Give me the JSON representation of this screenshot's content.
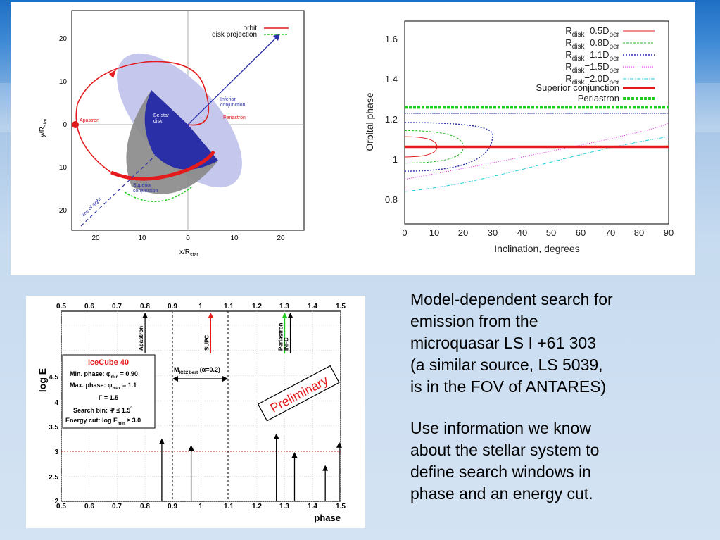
{
  "colors": {
    "orbit": "#e41a1c",
    "disk": "#2a2fa8",
    "shade": "#777",
    "periastron": "#22cc22",
    "accent": "#e41a1c"
  },
  "orbit_plot": {
    "xlabel": "x/R",
    "xlabel_sub": "star",
    "ylabel": "y/R",
    "ylabel_sub": "star",
    "xticks": [
      "20",
      "10",
      "0",
      "10",
      "20"
    ],
    "yticks": [
      "20",
      "10",
      "0",
      "10",
      "20"
    ],
    "legend": [
      {
        "label": "orbit"
      },
      {
        "label": "disk projection"
      }
    ],
    "labels": {
      "apastron": "Apastron",
      "periastron": "Periastron",
      "inferior1": "Inferior",
      "inferior2": "conjunction",
      "superior1": "Superior",
      "superior2": "conjunction",
      "disk1": "Be star",
      "disk2": "disk",
      "los": "line of sight"
    }
  },
  "phase_plot": {
    "ylabel": "Orbital phase",
    "xlabel": "Inclination, degrees",
    "xticks": [
      "0",
      "10",
      "20",
      "30",
      "40",
      "50",
      "60",
      "70",
      "80",
      "90"
    ],
    "yticks": [
      "0.8",
      "1",
      "1.2",
      "1.4",
      "1.6"
    ],
    "legend": [
      {
        "main": "R",
        "sub": "disk",
        "rest": "=0.5D",
        "sub2": "per"
      },
      {
        "main": "R",
        "sub": "disk",
        "rest": "=0.8D",
        "sub2": "per"
      },
      {
        "main": "R",
        "sub": "disk",
        "rest": "=1.1D",
        "sub2": "per"
      },
      {
        "main": "R",
        "sub": "disk",
        "rest": "=1.5D",
        "sub2": "per"
      },
      {
        "main": "R",
        "sub": "disk",
        "rest": "=2.0D",
        "sub2": "per"
      },
      {
        "main": "Superior conjunction"
      },
      {
        "main": "Periastron"
      }
    ]
  },
  "chart_data": [
    {
      "type": "line",
      "title": "",
      "xlabel": "Inclination, degrees",
      "ylabel": "Orbital phase",
      "xlim": [
        0,
        90
      ],
      "ylim": [
        0.7,
        1.7
      ],
      "series": [
        {
          "name": "Rdisk=0.5Dper",
          "x": [
            0,
            11,
            0
          ],
          "y": [
            1.13,
            1.08,
            1.03
          ]
        },
        {
          "name": "Rdisk=0.8Dper",
          "x": [
            0,
            20,
            0
          ],
          "y": [
            1.16,
            1.08,
            1.0
          ]
        },
        {
          "name": "Rdisk=1.1Dper",
          "x": [
            0,
            30,
            0
          ],
          "y": [
            1.2,
            1.14,
            0.96
          ]
        },
        {
          "name": "Rdisk=1.5Dper",
          "x": [
            0,
            38,
            90,
            90
          ],
          "y": [
            0.92,
            1.02,
            1.17,
            1.2
          ]
        },
        {
          "name": "Rdisk=2.0Dper",
          "x": [
            0,
            30,
            55,
            90
          ],
          "y": [
            0.86,
            0.9,
            1.05,
            1.13
          ]
        },
        {
          "name": "Superior conjunction",
          "x": [
            0,
            90
          ],
          "y": [
            1.08,
            1.08
          ]
        },
        {
          "name": "Periastron",
          "x": [
            0,
            90
          ],
          "y": [
            1.275,
            1.275
          ]
        },
        {
          "name": "",
          "x": [
            0,
            90
          ],
          "y": [
            1.245,
            1.245
          ]
        }
      ]
    },
    {
      "type": "scatter",
      "title": "",
      "xlabel": "phase",
      "ylabel": "log E",
      "xlim": [
        0.5,
        1.5
      ],
      "ylim": [
        2,
        5.5
      ],
      "events": {
        "phase": [
          0.86,
          0.965,
          1.27,
          1.335,
          1.445,
          1.495
        ],
        "logE": [
          3.25,
          3.12,
          3.35,
          2.98,
          2.72,
          3.18
        ]
      },
      "markers": [
        {
          "label": "Apastron",
          "phase": 0.8
        },
        {
          "label": "SUPC",
          "phase": 1.035
        },
        {
          "label": "Periastron",
          "phase": 1.3
        },
        {
          "label": "INFC",
          "phase": 1.32
        }
      ],
      "energy_cut": 3.0,
      "window": [
        0.9,
        1.1
      ]
    }
  ],
  "icecube_plot": {
    "xlabel": "phase",
    "ylabel": "log E",
    "xticks": [
      "0.5",
      "0.6",
      "0.7",
      "0.8",
      "0.9",
      "1",
      "1.1",
      "1.2",
      "1.3",
      "1.4",
      "1.5"
    ],
    "yticks": [
      "2",
      "2.5",
      "3",
      "3.5",
      "4",
      "4.5"
    ],
    "box": {
      "title": "IceCube 40",
      "l1": "Min. phase: φ",
      "l1sub": "min",
      "l1v": " = 0.90",
      "l2": "Max. phase: φ",
      "l2sub": "max",
      "l2v": " = 1.1",
      "l3": "Γ = 1.5",
      "l4": "Search bin: Ψ ≤ 1.5",
      "l4sup": "°",
      "l5": "Energy cut: log E",
      "l5sub": "min",
      "l5v": " ≥ 3.0"
    },
    "window": {
      "label": "M",
      "sub": "IC22 best",
      "rest": " (α=0.2)"
    },
    "prelim": "Preliminary"
  },
  "text": {
    "p1": "Model-dependent search for\nemission from the\nmicroquasar LS I +61 303\n(a similar source, LS 5039,\nis in the FOV of ANTARES)",
    "p2": "Use information we know\nabout the stellar system to\ndefine search windows in\nphase and an energy cut."
  }
}
